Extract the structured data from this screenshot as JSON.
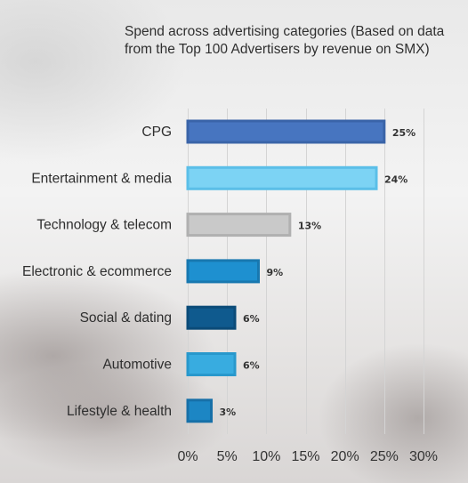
{
  "chart_data": {
    "type": "bar",
    "orientation": "horizontal",
    "title": "Spend across advertising categories (Based on data from the Top 100 Advertisers by revenue on SMX)",
    "categories": [
      "CPG",
      "Entertainment & media",
      "Technology & telecom",
      "Electronic & ecommerce",
      "Social & dating",
      "Automotive",
      "Lifestyle & health"
    ],
    "values": [
      25,
      24,
      13,
      9,
      6,
      6,
      3
    ],
    "value_labels": [
      "25%",
      "24%",
      "13%",
      "9%",
      "6%",
      "6%",
      "3%"
    ],
    "colors": [
      "#4775c0",
      "#7cd3f4",
      "#c9c9c9",
      "#1e90d0",
      "#0f5a8e",
      "#38ace0",
      "#1c86c4"
    ],
    "edge_colors": [
      "#3a64a8",
      "#5bbfe8",
      "#b0b0b0",
      "#1878b0",
      "#0b4b78",
      "#2898cc",
      "#1770a8"
    ],
    "xlim": [
      0,
      30
    ],
    "x_ticks": [
      0,
      5,
      10,
      15,
      20,
      25,
      30
    ],
    "x_tick_labels": [
      "0%",
      "5%",
      "10%",
      "15%",
      "20%",
      "25%",
      "30%"
    ],
    "grid": true,
    "legend": "none"
  }
}
